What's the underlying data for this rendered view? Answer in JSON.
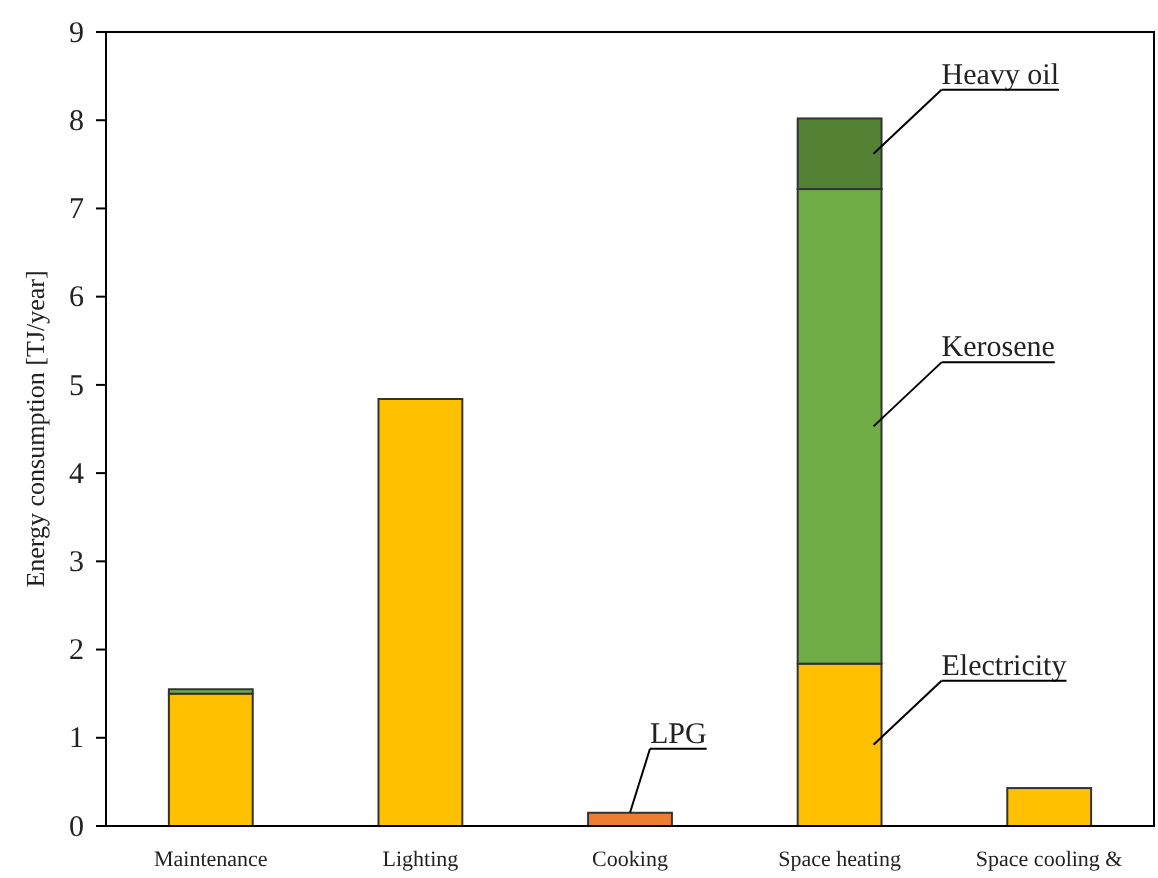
{
  "chart_data": {
    "type": "bar",
    "stacked": true,
    "ylabel": "Energy consumption  [TJ/year]",
    "categories": [
      "Maintenance",
      "Lighting",
      "Cooking",
      "Space heating",
      "Space cooling &"
    ],
    "series": [
      {
        "name": "Electricity",
        "color": "#ffc000",
        "values": [
          1.5,
          4.84,
          null,
          1.84,
          0.43
        ]
      },
      {
        "name": "LPG",
        "color": "#ed7d31",
        "values": [
          null,
          null,
          0.15,
          null,
          null
        ]
      },
      {
        "name": "Kerosene",
        "color": "#70ad47",
        "values": [
          0.05,
          null,
          null,
          5.38,
          null
        ]
      },
      {
        "name": "Heavy oil",
        "color": "#548235",
        "values": [
          null,
          null,
          null,
          0.8,
          null
        ]
      }
    ],
    "ylim": [
      0,
      9
    ],
    "yticks": [
      0,
      1,
      2,
      3,
      4,
      5,
      6,
      7,
      8,
      9
    ]
  }
}
